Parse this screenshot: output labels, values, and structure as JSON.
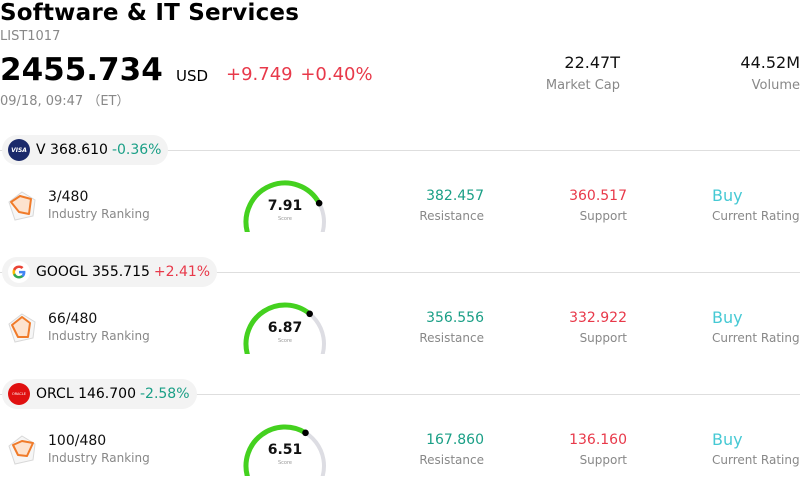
{
  "header": {
    "title": "Software & IT Services",
    "code": "LIST1017",
    "price": "2455.734",
    "currency": "USD",
    "change": "+9.749 +0.40%",
    "datetime": "09/18, 09:47 （ET）",
    "market_cap_value": "22.47T",
    "market_cap_label": "Market Cap",
    "volume_value": "44.52M",
    "volume_label": "Volume"
  },
  "colors": {
    "positive": "#e8394a",
    "negative": "#1a9f86",
    "rating": "#46c9d4",
    "gauge_fill": "#44d11f",
    "gauge_track": "#dddde3"
  },
  "stocks": [
    {
      "logo_text": "VISA",
      "logo_icon": "visa-logo-icon",
      "ticker": "V",
      "price": "368.610",
      "pct": "-0.36%",
      "rank": "3/480",
      "rank_label": "Industry Ranking",
      "score": "7.91",
      "score_value": 7.91,
      "score_label": "Score",
      "resistance": "382.457",
      "resistance_label": "Resistance",
      "support": "360.517",
      "support_label": "Support",
      "rating": "Buy",
      "rating_label": "Current Rating"
    },
    {
      "logo_icon": "google-logo-icon",
      "ticker": "GOOGL",
      "price": "355.715",
      "pct": "+2.41%",
      "rank": "66/480",
      "rank_label": "Industry Ranking",
      "score": "6.87",
      "score_value": 6.87,
      "score_label": "Score",
      "resistance": "356.556",
      "resistance_label": "Resistance",
      "support": "332.922",
      "support_label": "Support",
      "rating": "Buy",
      "rating_label": "Current Rating"
    },
    {
      "logo_text": "ORACLE",
      "logo_icon": "oracle-logo-icon",
      "ticker": "ORCL",
      "price": "146.700",
      "pct": "-2.58%",
      "rank": "100/480",
      "rank_label": "Industry Ranking",
      "score": "6.51",
      "score_value": 6.51,
      "score_label": "Score",
      "resistance": "167.860",
      "resistance_label": "Resistance",
      "support": "136.160",
      "support_label": "Support",
      "rating": "Buy",
      "rating_label": "Current Rating"
    }
  ]
}
